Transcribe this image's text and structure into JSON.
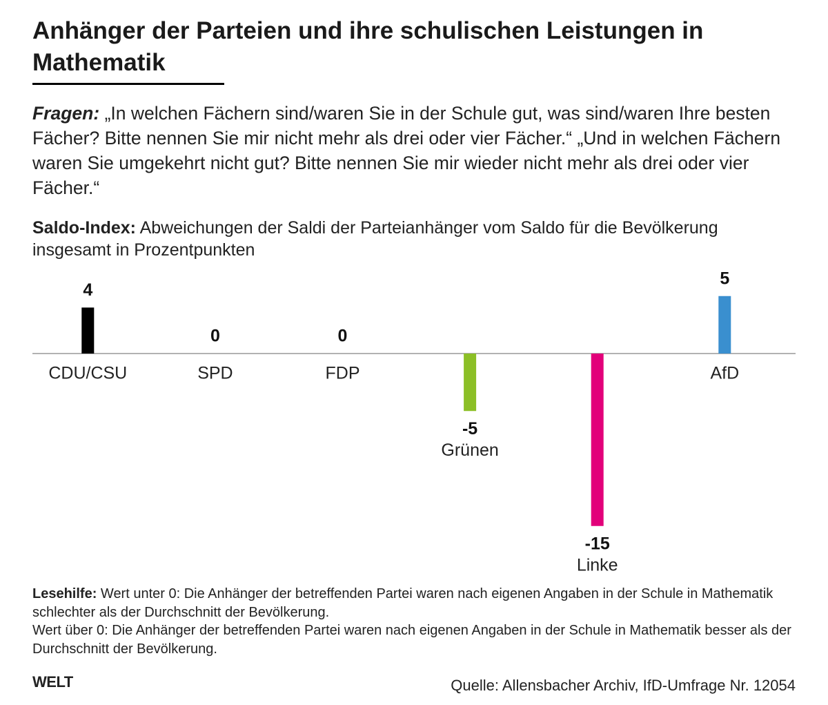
{
  "chart_data": {
    "type": "bar",
    "title": "Anhänger der Parteien und ihre schulischen Leistungen in Mathematik",
    "questions_label": "Fragen:",
    "questions": "„In welchen Fächern sind/waren Sie in der Schule gut, was sind/waren Ihre besten Fächer? Bitte nennen Sie mir nicht mehr als drei oder vier Fächer.“ „Und in welchen Fächern waren Sie umgekehrt nicht gut? Bitte nennen Sie mir wieder nicht mehr als drei oder vier Fächer.“",
    "subtitle_label": "Saldo-Index:",
    "subtitle": "Abweichungen der Saldi der Parteianhänger vom Saldo für die Bevölkerung insgesamt in Prozentpunkten",
    "categories": [
      "CDU/CSU",
      "SPD",
      "FDP",
      "Grünen",
      "Linke",
      "AfD"
    ],
    "values": [
      4,
      0,
      0,
      -5,
      -15,
      5
    ],
    "colors": [
      "#000000",
      "#e3000f",
      "#ffd600",
      "#8cbf26",
      "#e2007a",
      "#3a8fcf"
    ],
    "note_label": "Lesehilfe:",
    "note": [
      "Wert unter 0: Die Anhänger der betreffenden Partei waren nach eigenen Angaben in der Schule in Mathematik schlechter als der Durchschnitt der Bevölkerung.",
      "Wert über 0: Die Anhänger der betreffenden Partei waren nach eigenen Angaben in der Schule in Mathematik besser als der Durchschnitt der Bevölkerung."
    ],
    "logo": "WELT",
    "source": "Quelle: Allensbacher Archiv, IfD-Umfrage Nr. 12054"
  }
}
